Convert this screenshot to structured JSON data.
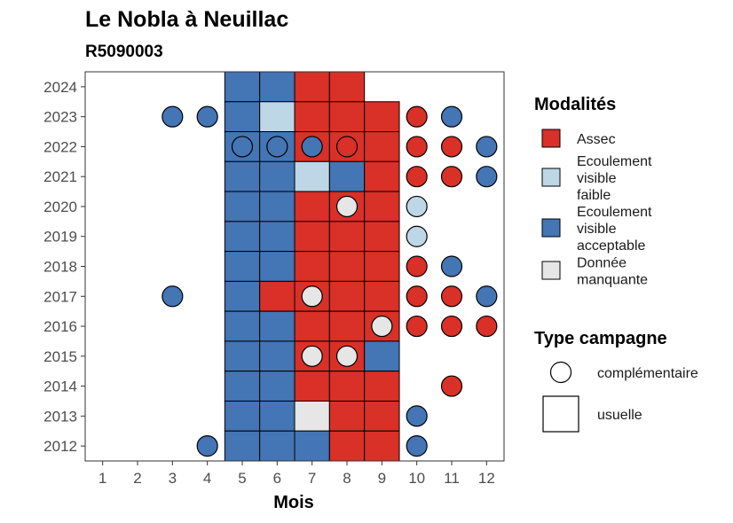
{
  "chart_data": {
    "type": "heatmap",
    "title": "Le Nobla à Neuillac",
    "subtitle": "R5090003",
    "xlabel": "Mois",
    "ylabel": "",
    "x_ticks": [
      "1",
      "2",
      "3",
      "4",
      "5",
      "6",
      "7",
      "8",
      "9",
      "10",
      "11",
      "12"
    ],
    "y_ticks": [
      "2012",
      "2013",
      "2014",
      "2015",
      "2016",
      "2017",
      "2018",
      "2019",
      "2020",
      "2021",
      "2022",
      "2023",
      "2024"
    ],
    "xlim": [
      0.5,
      12.5
    ],
    "ylim": [
      2011.5,
      2024.5
    ],
    "grid": false,
    "legend_placement": "right",
    "colors": {
      "Assec": "#d93027",
      "Ecoulement visible faible": "#bdd7e7",
      "Ecoulement visible acceptable": "#4475b5",
      "Donnée manquante": "#e6e6e6"
    },
    "legend": {
      "modalites_title": "Modalités",
      "modalites": [
        {
          "key": "Assec",
          "label_lines": [
            "Assec"
          ]
        },
        {
          "key": "Ecoulement visible faible",
          "label_lines": [
            "Ecoulement",
            "visible",
            "faible"
          ]
        },
        {
          "key": "Ecoulement visible acceptable",
          "label_lines": [
            "Ecoulement",
            "visible",
            "acceptable"
          ]
        },
        {
          "key": "Donnée manquante",
          "label_lines": [
            "Donnée",
            "manquante"
          ]
        }
      ],
      "campagne_title": "Type campagne",
      "campagnes": [
        {
          "shape": "circle",
          "label": "complémentaire"
        },
        {
          "shape": "square",
          "label": "usuelle"
        }
      ]
    },
    "tiles": [
      {
        "year": 2024,
        "month": 5,
        "value": "Ecoulement visible acceptable"
      },
      {
        "year": 2024,
        "month": 6,
        "value": "Ecoulement visible acceptable"
      },
      {
        "year": 2024,
        "month": 7,
        "value": "Assec"
      },
      {
        "year": 2024,
        "month": 8,
        "value": "Assec"
      },
      {
        "year": 2023,
        "month": 5,
        "value": "Ecoulement visible acceptable"
      },
      {
        "year": 2023,
        "month": 6,
        "value": "Ecoulement visible faible"
      },
      {
        "year": 2023,
        "month": 7,
        "value": "Assec"
      },
      {
        "year": 2023,
        "month": 8,
        "value": "Assec"
      },
      {
        "year": 2023,
        "month": 9,
        "value": "Assec"
      },
      {
        "year": 2022,
        "month": 5,
        "value": "Ecoulement visible acceptable"
      },
      {
        "year": 2022,
        "month": 6,
        "value": "Ecoulement visible acceptable"
      },
      {
        "year": 2022,
        "month": 7,
        "value": "Assec"
      },
      {
        "year": 2022,
        "month": 8,
        "value": "Assec"
      },
      {
        "year": 2022,
        "month": 9,
        "value": "Assec"
      },
      {
        "year": 2021,
        "month": 5,
        "value": "Ecoulement visible acceptable"
      },
      {
        "year": 2021,
        "month": 6,
        "value": "Ecoulement visible acceptable"
      },
      {
        "year": 2021,
        "month": 7,
        "value": "Ecoulement visible faible"
      },
      {
        "year": 2021,
        "month": 8,
        "value": "Ecoulement visible acceptable"
      },
      {
        "year": 2021,
        "month": 9,
        "value": "Assec"
      },
      {
        "year": 2020,
        "month": 5,
        "value": "Ecoulement visible acceptable"
      },
      {
        "year": 2020,
        "month": 6,
        "value": "Ecoulement visible acceptable"
      },
      {
        "year": 2020,
        "month": 7,
        "value": "Assec"
      },
      {
        "year": 2020,
        "month": 8,
        "value": "Assec"
      },
      {
        "year": 2020,
        "month": 9,
        "value": "Assec"
      },
      {
        "year": 2019,
        "month": 5,
        "value": "Ecoulement visible acceptable"
      },
      {
        "year": 2019,
        "month": 6,
        "value": "Ecoulement visible acceptable"
      },
      {
        "year": 2019,
        "month": 7,
        "value": "Assec"
      },
      {
        "year": 2019,
        "month": 8,
        "value": "Assec"
      },
      {
        "year": 2019,
        "month": 9,
        "value": "Assec"
      },
      {
        "year": 2018,
        "month": 5,
        "value": "Ecoulement visible acceptable"
      },
      {
        "year": 2018,
        "month": 6,
        "value": "Ecoulement visible acceptable"
      },
      {
        "year": 2018,
        "month": 7,
        "value": "Assec"
      },
      {
        "year": 2018,
        "month": 8,
        "value": "Assec"
      },
      {
        "year": 2018,
        "month": 9,
        "value": "Assec"
      },
      {
        "year": 2017,
        "month": 5,
        "value": "Ecoulement visible acceptable"
      },
      {
        "year": 2017,
        "month": 6,
        "value": "Assec"
      },
      {
        "year": 2017,
        "month": 7,
        "value": "Assec"
      },
      {
        "year": 2017,
        "month": 8,
        "value": "Assec"
      },
      {
        "year": 2017,
        "month": 9,
        "value": "Assec"
      },
      {
        "year": 2016,
        "month": 5,
        "value": "Ecoulement visible acceptable"
      },
      {
        "year": 2016,
        "month": 6,
        "value": "Ecoulement visible acceptable"
      },
      {
        "year": 2016,
        "month": 7,
        "value": "Assec"
      },
      {
        "year": 2016,
        "month": 8,
        "value": "Assec"
      },
      {
        "year": 2016,
        "month": 9,
        "value": "Assec"
      },
      {
        "year": 2015,
        "month": 5,
        "value": "Ecoulement visible acceptable"
      },
      {
        "year": 2015,
        "month": 6,
        "value": "Ecoulement visible acceptable"
      },
      {
        "year": 2015,
        "month": 7,
        "value": "Assec"
      },
      {
        "year": 2015,
        "month": 8,
        "value": "Assec"
      },
      {
        "year": 2015,
        "month": 9,
        "value": "Ecoulement visible acceptable"
      },
      {
        "year": 2014,
        "month": 5,
        "value": "Ecoulement visible acceptable"
      },
      {
        "year": 2014,
        "month": 6,
        "value": "Ecoulement visible acceptable"
      },
      {
        "year": 2014,
        "month": 7,
        "value": "Assec"
      },
      {
        "year": 2014,
        "month": 8,
        "value": "Assec"
      },
      {
        "year": 2014,
        "month": 9,
        "value": "Assec"
      },
      {
        "year": 2013,
        "month": 5,
        "value": "Ecoulement visible acceptable"
      },
      {
        "year": 2013,
        "month": 6,
        "value": "Ecoulement visible acceptable"
      },
      {
        "year": 2013,
        "month": 7,
        "value": "Donnée manquante"
      },
      {
        "year": 2013,
        "month": 8,
        "value": "Assec"
      },
      {
        "year": 2013,
        "month": 9,
        "value": "Assec"
      },
      {
        "year": 2012,
        "month": 5,
        "value": "Ecoulement visible acceptable"
      },
      {
        "year": 2012,
        "month": 6,
        "value": "Ecoulement visible acceptable"
      },
      {
        "year": 2012,
        "month": 7,
        "value": "Ecoulement visible acceptable"
      },
      {
        "year": 2012,
        "month": 8,
        "value": "Assec"
      },
      {
        "year": 2012,
        "month": 9,
        "value": "Assec"
      }
    ],
    "points": [
      {
        "year": 2023,
        "month": 3,
        "value": "Ecoulement visible acceptable"
      },
      {
        "year": 2023,
        "month": 4,
        "value": "Ecoulement visible acceptable"
      },
      {
        "year": 2023,
        "month": 10,
        "value": "Assec"
      },
      {
        "year": 2023,
        "month": 11,
        "value": "Ecoulement visible acceptable"
      },
      {
        "year": 2022,
        "month": 5,
        "value": "Ecoulement visible acceptable"
      },
      {
        "year": 2022,
        "month": 6,
        "value": "Ecoulement visible acceptable"
      },
      {
        "year": 2022,
        "month": 7,
        "value": "Ecoulement visible acceptable"
      },
      {
        "year": 2022,
        "month": 8,
        "value": "Assec"
      },
      {
        "year": 2022,
        "month": 10,
        "value": "Assec"
      },
      {
        "year": 2022,
        "month": 11,
        "value": "Assec"
      },
      {
        "year": 2022,
        "month": 12,
        "value": "Ecoulement visible acceptable"
      },
      {
        "year": 2021,
        "month": 10,
        "value": "Assec"
      },
      {
        "year": 2021,
        "month": 11,
        "value": "Assec"
      },
      {
        "year": 2021,
        "month": 12,
        "value": "Ecoulement visible acceptable"
      },
      {
        "year": 2020,
        "month": 8,
        "value": "Donnée manquante"
      },
      {
        "year": 2020,
        "month": 10,
        "value": "Ecoulement visible faible"
      },
      {
        "year": 2019,
        "month": 10,
        "value": "Ecoulement visible faible"
      },
      {
        "year": 2018,
        "month": 10,
        "value": "Assec"
      },
      {
        "year": 2018,
        "month": 11,
        "value": "Ecoulement visible acceptable"
      },
      {
        "year": 2017,
        "month": 3,
        "value": "Ecoulement visible acceptable"
      },
      {
        "year": 2017,
        "month": 7,
        "value": "Donnée manquante"
      },
      {
        "year": 2017,
        "month": 10,
        "value": "Assec"
      },
      {
        "year": 2017,
        "month": 11,
        "value": "Assec"
      },
      {
        "year": 2017,
        "month": 12,
        "value": "Ecoulement visible acceptable"
      },
      {
        "year": 2016,
        "month": 9,
        "value": "Donnée manquante"
      },
      {
        "year": 2016,
        "month": 10,
        "value": "Assec"
      },
      {
        "year": 2016,
        "month": 11,
        "value": "Assec"
      },
      {
        "year": 2016,
        "month": 12,
        "value": "Assec"
      },
      {
        "year": 2015,
        "month": 7,
        "value": "Donnée manquante"
      },
      {
        "year": 2015,
        "month": 8,
        "value": "Donnée manquante"
      },
      {
        "year": 2014,
        "month": 11,
        "value": "Assec"
      },
      {
        "year": 2013,
        "month": 10,
        "value": "Ecoulement visible acceptable"
      },
      {
        "year": 2012,
        "month": 4,
        "value": "Ecoulement visible acceptable"
      },
      {
        "year": 2012,
        "month": 10,
        "value": "Ecoulement visible acceptable"
      }
    ]
  }
}
